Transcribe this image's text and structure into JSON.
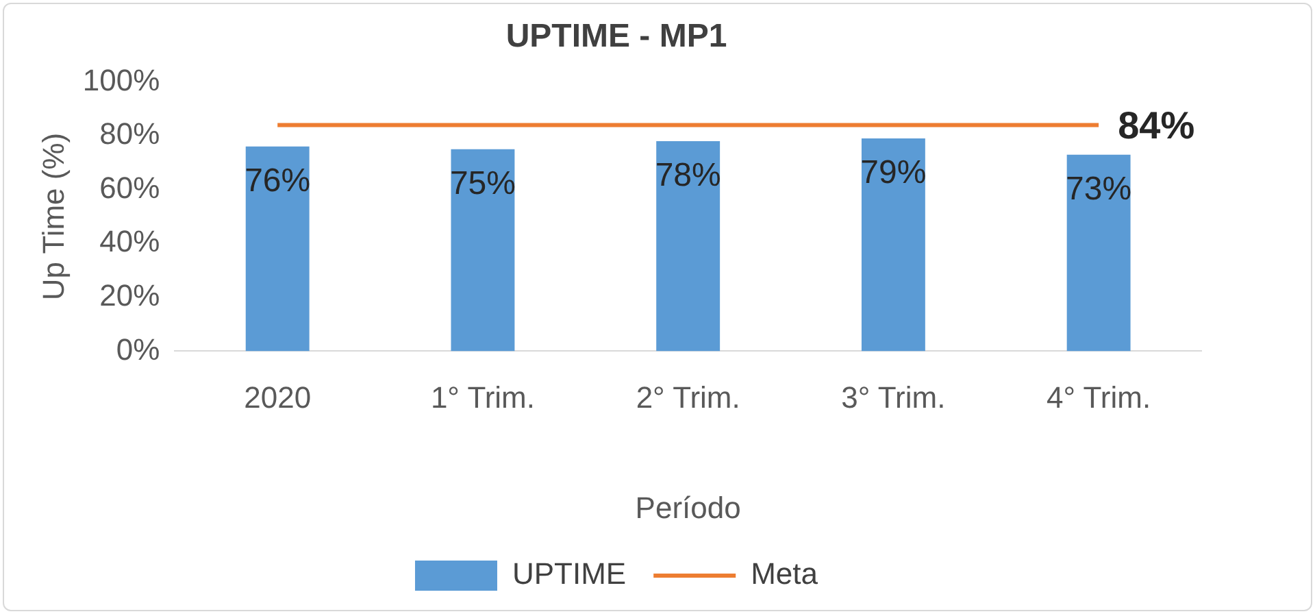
{
  "chart_data": {
    "type": "bar",
    "title": "UPTIME - MP1",
    "xlabel": "Período",
    "ylabel": "Up Time (%)",
    "categories": [
      "2020",
      "1° Trim.",
      "2° Trim.",
      "3° Trim.",
      "4° Trim."
    ],
    "series": [
      {
        "name": "UPTIME",
        "color": "#5b9bd5",
        "values": [
          76,
          75,
          78,
          79,
          73
        ],
        "value_labels": [
          "76%",
          "75%",
          "78%",
          "79%",
          "73%"
        ]
      },
      {
        "name": "Meta",
        "type": "line",
        "color": "#ed7d31",
        "values": [
          84,
          84,
          84,
          84,
          84
        ],
        "value_labels": [
          null,
          null,
          null,
          null,
          "84%"
        ]
      }
    ],
    "ylim": [
      0,
      100
    ],
    "yticks": [
      {
        "value": 0,
        "label": "0%"
      },
      {
        "value": 20,
        "label": "20%"
      },
      {
        "value": 40,
        "label": "40%"
      },
      {
        "value": 60,
        "label": "60%"
      },
      {
        "value": 80,
        "label": "80%"
      },
      {
        "value": 100,
        "label": "100%"
      }
    ],
    "grid": false,
    "legend": "bottom",
    "marker": "none"
  }
}
